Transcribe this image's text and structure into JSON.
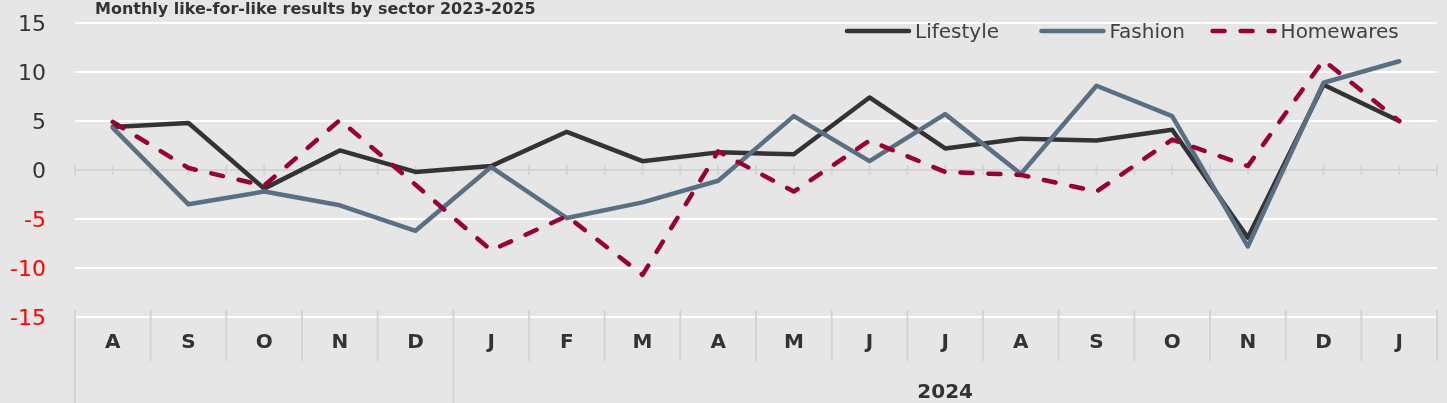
{
  "chart_data": {
    "type": "line",
    "title": "Monthly like-for-like results by sector 2023-2025",
    "categories": [
      "A",
      "S",
      "O",
      "N",
      "D",
      "J",
      "F",
      "M",
      "A",
      "M",
      "J",
      "J",
      "A",
      "S",
      "O",
      "N",
      "D",
      "J"
    ],
    "series": [
      {
        "name": "Lifestyle",
        "color": "#333333",
        "line_style": "solid",
        "values": [
          4.4,
          4.8,
          -1.9,
          2,
          -0.2,
          0.4,
          3.9,
          0.9,
          1.8,
          1.6,
          7.4,
          2.2,
          3.2,
          3,
          4.1,
          -6.9,
          8.7,
          5
        ]
      },
      {
        "name": "Fashion",
        "color": "#5b6f82",
        "line_style": "solid",
        "values": [
          4.3,
          -3.5,
          -2.2,
          -3.6,
          -6.2,
          0.3,
          -4.9,
          -3.3,
          -1.1,
          5.5,
          0.9,
          5.7,
          -0.4,
          8.6,
          5.5,
          -7.8,
          8.9,
          11.1
        ]
      },
      {
        "name": "Homewares",
        "color": "#990033",
        "line_style": "dashed",
        "values": [
          4.9,
          0.2,
          -1.6,
          5.1,
          -1.5,
          -8.2,
          -4.7,
          -10.7,
          1.9,
          -2.2,
          3,
          -0.2,
          -0.5,
          -2.2,
          3.1,
          0.4,
          11.2,
          5
        ]
      }
    ],
    "ylim": [
      -15,
      15
    ],
    "yticks": [
      -15,
      -10,
      -5,
      0,
      5,
      10,
      15
    ],
    "grid": "y",
    "legend": "top right",
    "annotations": [
      "2024"
    ]
  }
}
